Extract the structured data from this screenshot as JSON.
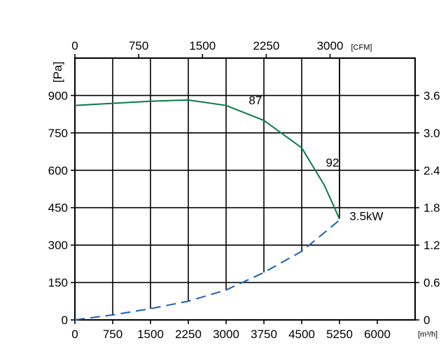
{
  "chart_data": {
    "type": "line",
    "x_bottom": {
      "label": "[m³/h]",
      "ticks": [
        "0",
        "750",
        "1500",
        "2250",
        "3000",
        "3750",
        "4500",
        "5250",
        "6000"
      ],
      "range": [
        0,
        6750
      ]
    },
    "x_top": {
      "label": "[CFM]",
      "ticks": [
        "0",
        "750",
        "1500",
        "2250",
        "3000"
      ],
      "tick_values": [
        0,
        750,
        1500,
        2250,
        3000
      ]
    },
    "y_left": {
      "label": "[Pa]",
      "ticks": [
        "0",
        "150",
        "300",
        "450",
        "600",
        "750",
        "900"
      ],
      "range": [
        0,
        1050
      ]
    },
    "y_right": {
      "ticks": [
        "0",
        "0.6",
        "1.2",
        "1.8",
        "2.4",
        "3.0",
        "3.6"
      ]
    },
    "grid": true,
    "pressure_curve": {
      "color": "#0a7a4a",
      "x": [
        0,
        1500,
        2250,
        3000,
        3750,
        4500,
        4950,
        5250
      ],
      "y": [
        860,
        877,
        882,
        860,
        800,
        690,
        540,
        405
      ]
    },
    "power_curve": {
      "color": "#1a5fb4",
      "style": "dashed",
      "x": [
        0,
        750,
        1500,
        2250,
        3000,
        3750,
        4500,
        5250
      ],
      "y": [
        0,
        20,
        45,
        75,
        120,
        190,
        275,
        400
      ]
    },
    "annotations": [
      {
        "text": "87",
        "x": 3450,
        "y": 865
      },
      {
        "text": "92",
        "x": 4980,
        "y": 615
      },
      {
        "text": "3.5kW",
        "x": 5450,
        "y": 400
      }
    ]
  }
}
